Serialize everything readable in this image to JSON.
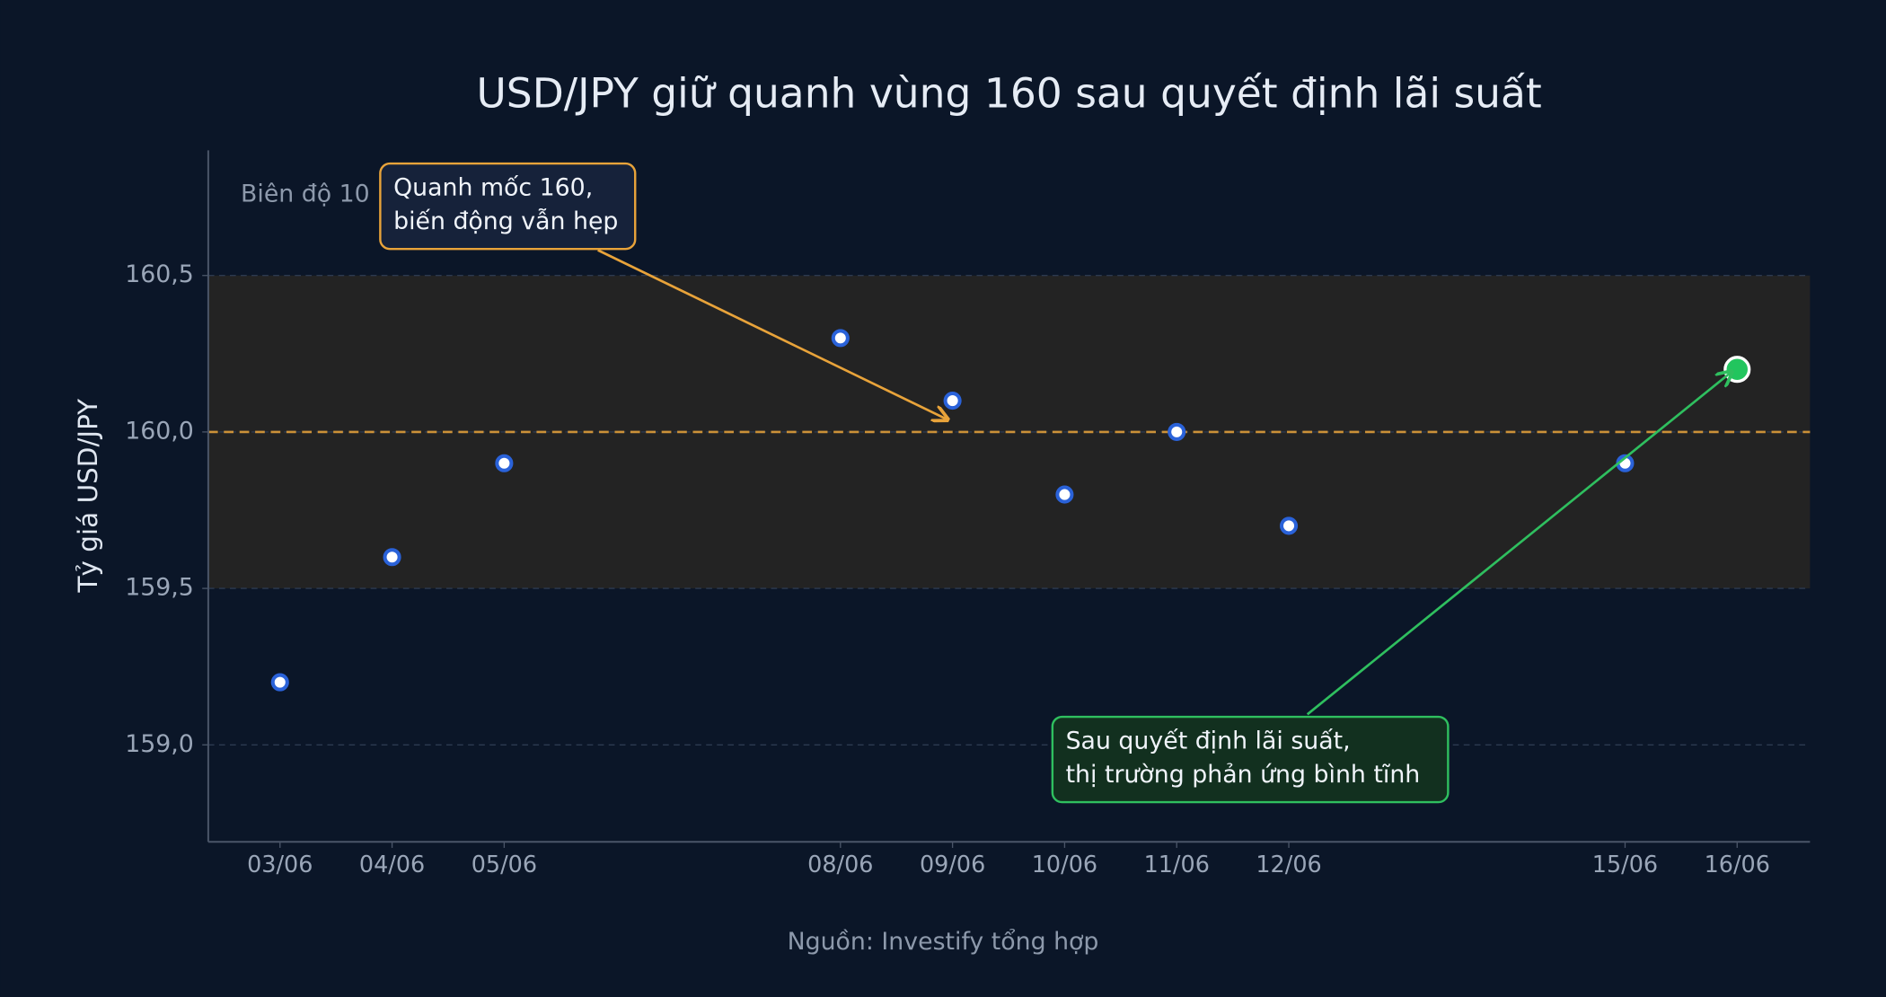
{
  "chart_data": {
    "type": "line",
    "title": "USD/JPY giữ quanh vùng 160 sau quyết định lãi suất",
    "y_label": "Tỷ giá USD/JPY",
    "source": "Nguồn: Investify tổng hợp",
    "x": [
      3,
      4,
      5,
      8,
      9,
      10,
      11,
      12,
      15,
      16
    ],
    "xlim": [
      2.36,
      16.65
    ],
    "xticks": [
      {
        "value": 3,
        "label": "03/06"
      },
      {
        "value": 4,
        "label": "04/06"
      },
      {
        "value": 5,
        "label": "05/06"
      },
      {
        "value": 8,
        "label": "08/06"
      },
      {
        "value": 9,
        "label": "09/06"
      },
      {
        "value": 10,
        "label": "10/06"
      },
      {
        "value": 11,
        "label": "11/06"
      },
      {
        "value": 12,
        "label": "12/06"
      },
      {
        "value": 15,
        "label": "15/06"
      },
      {
        "value": 16,
        "label": "16/06"
      }
    ],
    "series": [
      {
        "color": "#2a62d9",
        "values": [
          159.2,
          159.6,
          159.9,
          160.3,
          160.1,
          159.8,
          160.0,
          159.7,
          159.9,
          160.2
        ]
      }
    ],
    "last_point_color": "#22c55e",
    "ylim": [
      158.69,
      160.9
    ],
    "yticks": [
      {
        "value": 159,
        "label": "159,0"
      },
      {
        "value": 159.5,
        "label": "159,5"
      },
      {
        "value": 160,
        "label": "160,0"
      },
      {
        "value": 160.5,
        "label": "160,5"
      }
    ],
    "grid": true,
    "band": {
      "from": 159.5,
      "to": 160.5,
      "label": "Biên độ 10",
      "color": "#232323"
    },
    "reference_line": {
      "value": 160,
      "color": "#e8a33a"
    },
    "annotations": [
      {
        "lines": [
          "Quanh mốc 160,",
          "biến động vẫn hẹp"
        ],
        "color": "#e8a33a"
      },
      {
        "lines": [
          "Sau quyết định lãi suất,",
          "thị trường phản ứng bình tĩnh"
        ],
        "color": "#2fbf5f"
      }
    ]
  }
}
